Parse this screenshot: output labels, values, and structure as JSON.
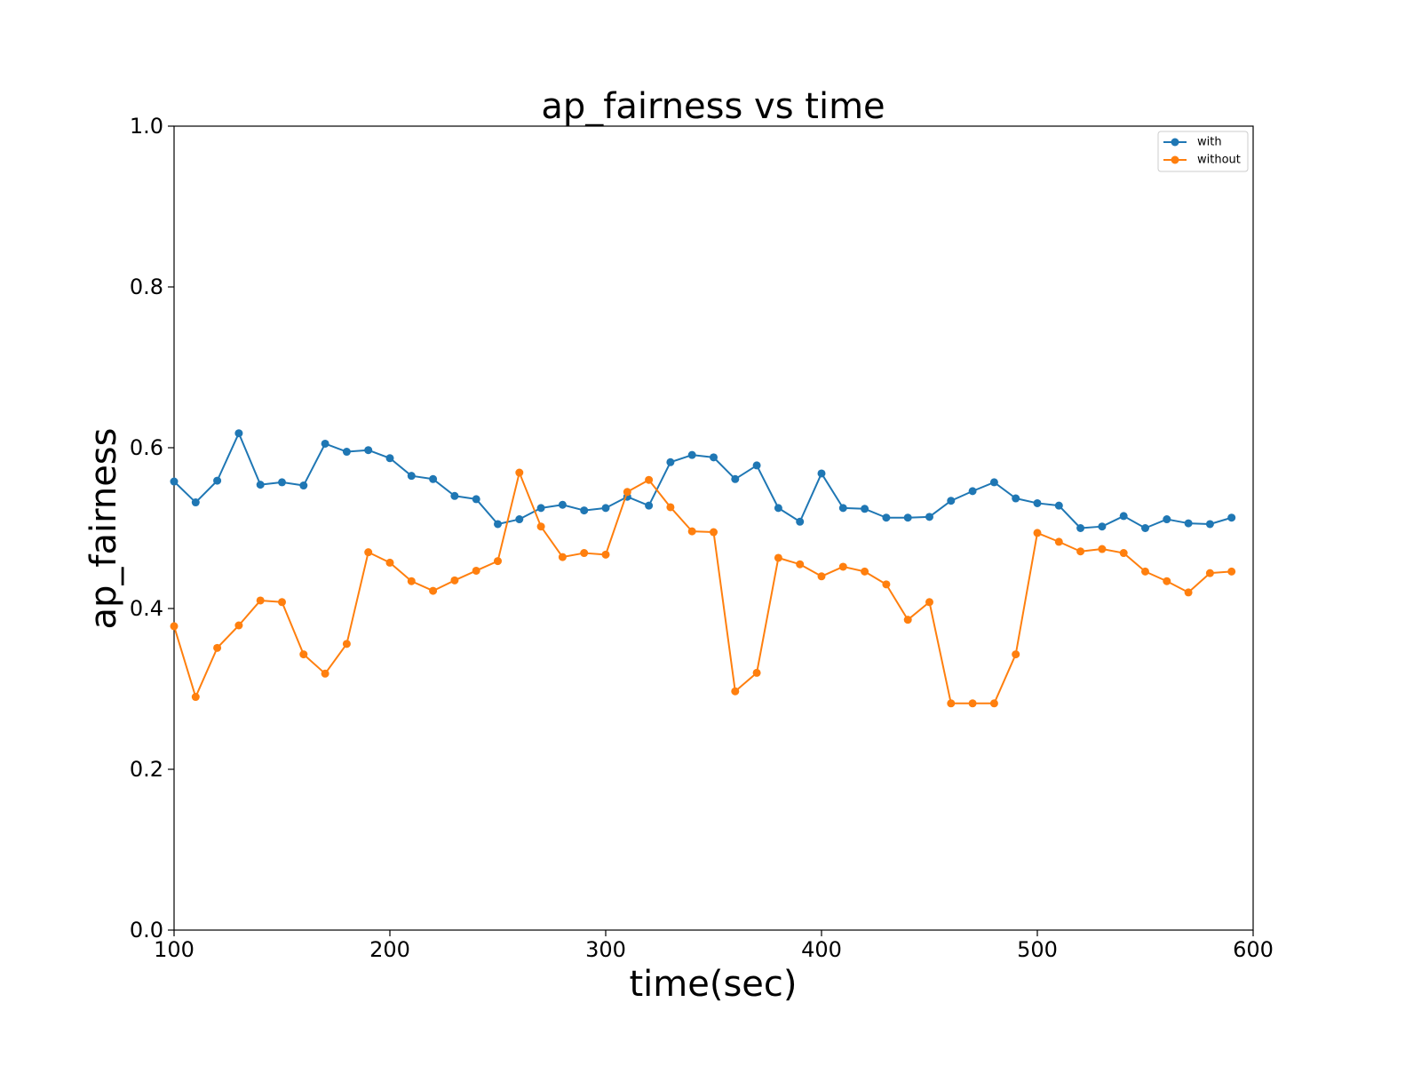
{
  "chart_data": {
    "type": "line",
    "title": "ap_fairness vs time",
    "xlabel": "time(sec)",
    "ylabel": "ap_fairness",
    "xlim": [
      100,
      600
    ],
    "ylim": [
      0.0,
      1.0
    ],
    "xticks": [
      100,
      200,
      300,
      400,
      500,
      600
    ],
    "xtick_labels": [
      "100",
      "200",
      "300",
      "400",
      "500",
      "600"
    ],
    "yticks": [
      0.0,
      0.2,
      0.4,
      0.6,
      0.8,
      1.0
    ],
    "ytick_labels": [
      "0.0",
      "0.2",
      "0.4",
      "0.6",
      "0.8",
      "1.0"
    ],
    "grid": false,
    "legend_position": "top-right",
    "x": [
      100,
      110,
      120,
      130,
      140,
      150,
      160,
      170,
      180,
      190,
      200,
      210,
      220,
      230,
      240,
      250,
      260,
      270,
      280,
      290,
      300,
      310,
      320,
      330,
      340,
      350,
      360,
      370,
      380,
      390,
      400,
      410,
      420,
      430,
      440,
      450,
      460,
      470,
      480,
      490,
      500,
      510,
      520,
      530,
      540,
      550,
      560,
      570,
      580,
      590
    ],
    "series": [
      {
        "name": "with",
        "color": "#1f77b4",
        "values": [
          0.558,
          0.532,
          0.559,
          0.618,
          0.554,
          0.557,
          0.553,
          0.605,
          0.595,
          0.597,
          0.587,
          0.565,
          0.561,
          0.54,
          0.536,
          0.505,
          0.511,
          0.525,
          0.529,
          0.522,
          0.525,
          0.539,
          0.528,
          0.582,
          0.591,
          0.588,
          0.561,
          0.578,
          0.525,
          0.508,
          0.568,
          0.525,
          0.524,
          0.513,
          0.513,
          0.514,
          0.534,
          0.546,
          0.557,
          0.537,
          0.531,
          0.528,
          0.5,
          0.502,
          0.515,
          0.5,
          0.511,
          0.506,
          0.505,
          0.513
        ]
      },
      {
        "name": "without",
        "color": "#ff7f0e",
        "values": [
          0.378,
          0.29,
          0.351,
          0.379,
          0.41,
          0.408,
          0.343,
          0.319,
          0.356,
          0.47,
          0.457,
          0.434,
          0.422,
          0.435,
          0.447,
          0.459,
          0.569,
          0.502,
          0.464,
          0.469,
          0.467,
          0.545,
          0.56,
          0.526,
          0.496,
          0.495,
          0.297,
          0.32,
          0.463,
          0.455,
          0.44,
          0.452,
          0.446,
          0.43,
          0.386,
          0.408,
          0.282,
          0.282,
          0.282,
          0.343,
          0.494,
          0.483,
          0.471,
          0.474,
          0.469,
          0.446,
          0.434,
          0.42,
          0.444,
          0.446
        ]
      }
    ]
  }
}
